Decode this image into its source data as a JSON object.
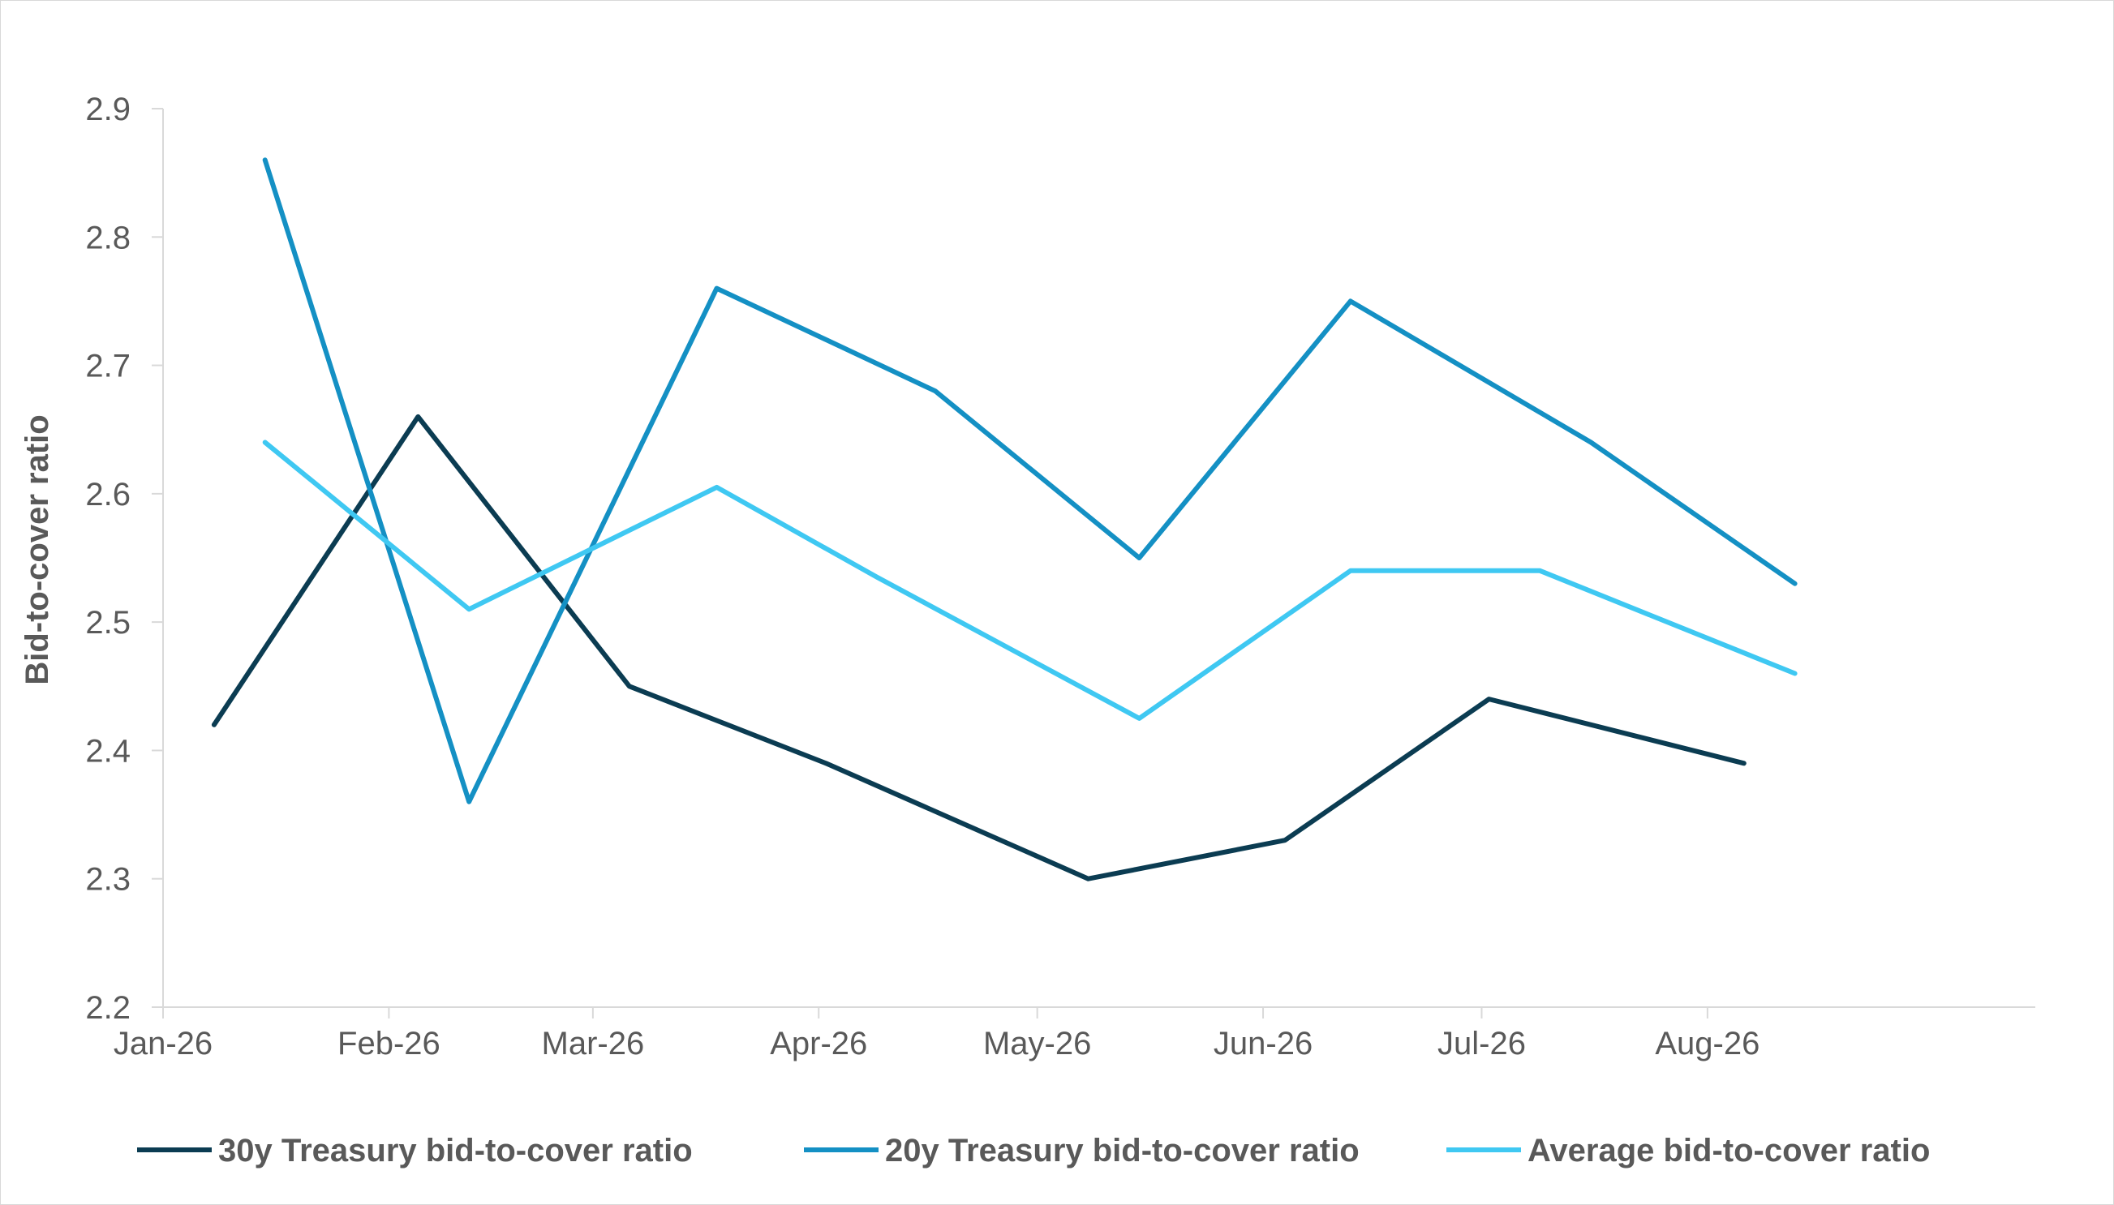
{
  "chart_data": {
    "type": "line",
    "title": "",
    "xlabel": "",
    "ylabel": "Bid-to-cover ratio",
    "ylim": [
      2.2,
      2.9
    ],
    "yticks": [
      2.2,
      2.3,
      2.4,
      2.5,
      2.6,
      2.7,
      2.8,
      2.9
    ],
    "ytick_labels": [
      "2.2",
      "2.3",
      "2.4",
      "2.5",
      "2.6",
      "2.7",
      "2.8",
      "2.9"
    ],
    "xlim": [
      "2026-01-01",
      "2026-09-15"
    ],
    "xticks": [
      "2026-01-01",
      "2026-02-01",
      "2026-03-01",
      "2026-04-01",
      "2026-05-01",
      "2026-06-01",
      "2026-07-01",
      "2026-08-01"
    ],
    "xtick_labels": [
      "Jan-26",
      "Feb-26",
      "Mar-26",
      "Apr-26",
      "May-26",
      "Jun-26",
      "Jul-26",
      "Aug-26"
    ],
    "grid": false,
    "legend_position": "bottom",
    "series": [
      {
        "name": "30y Treasury bid-to-cover ratio",
        "color": "#0b3c52",
        "x": [
          "2026-01-08",
          "2026-02-05",
          "2026-03-06",
          "2026-04-02",
          "2026-05-08",
          "2026-06-04",
          "2026-07-02",
          "2026-08-06"
        ],
        "values": [
          2.42,
          2.66,
          2.45,
          2.39,
          2.3,
          2.33,
          2.44,
          2.39
        ]
      },
      {
        "name": "20y Treasury bid-to-cover ratio",
        "color": "#1490c4",
        "x": [
          "2026-01-15",
          "2026-02-12",
          "2026-03-18",
          "2026-04-17",
          "2026-05-15",
          "2026-06-13",
          "2026-07-16",
          "2026-08-13"
        ],
        "values": [
          2.86,
          2.36,
          2.76,
          2.68,
          2.55,
          2.75,
          2.64,
          2.53
        ]
      },
      {
        "name": "Average bid-to-cover ratio",
        "color": "#3fc8f2",
        "x": [
          "2026-01-15",
          "2026-02-12",
          "2026-03-18",
          "2026-04-09",
          "2026-05-15",
          "2026-06-13",
          "2026-07-09",
          "2026-08-13"
        ],
        "values": [
          2.64,
          2.51,
          2.605,
          2.535,
          2.425,
          2.54,
          2.54,
          2.46
        ]
      }
    ]
  }
}
